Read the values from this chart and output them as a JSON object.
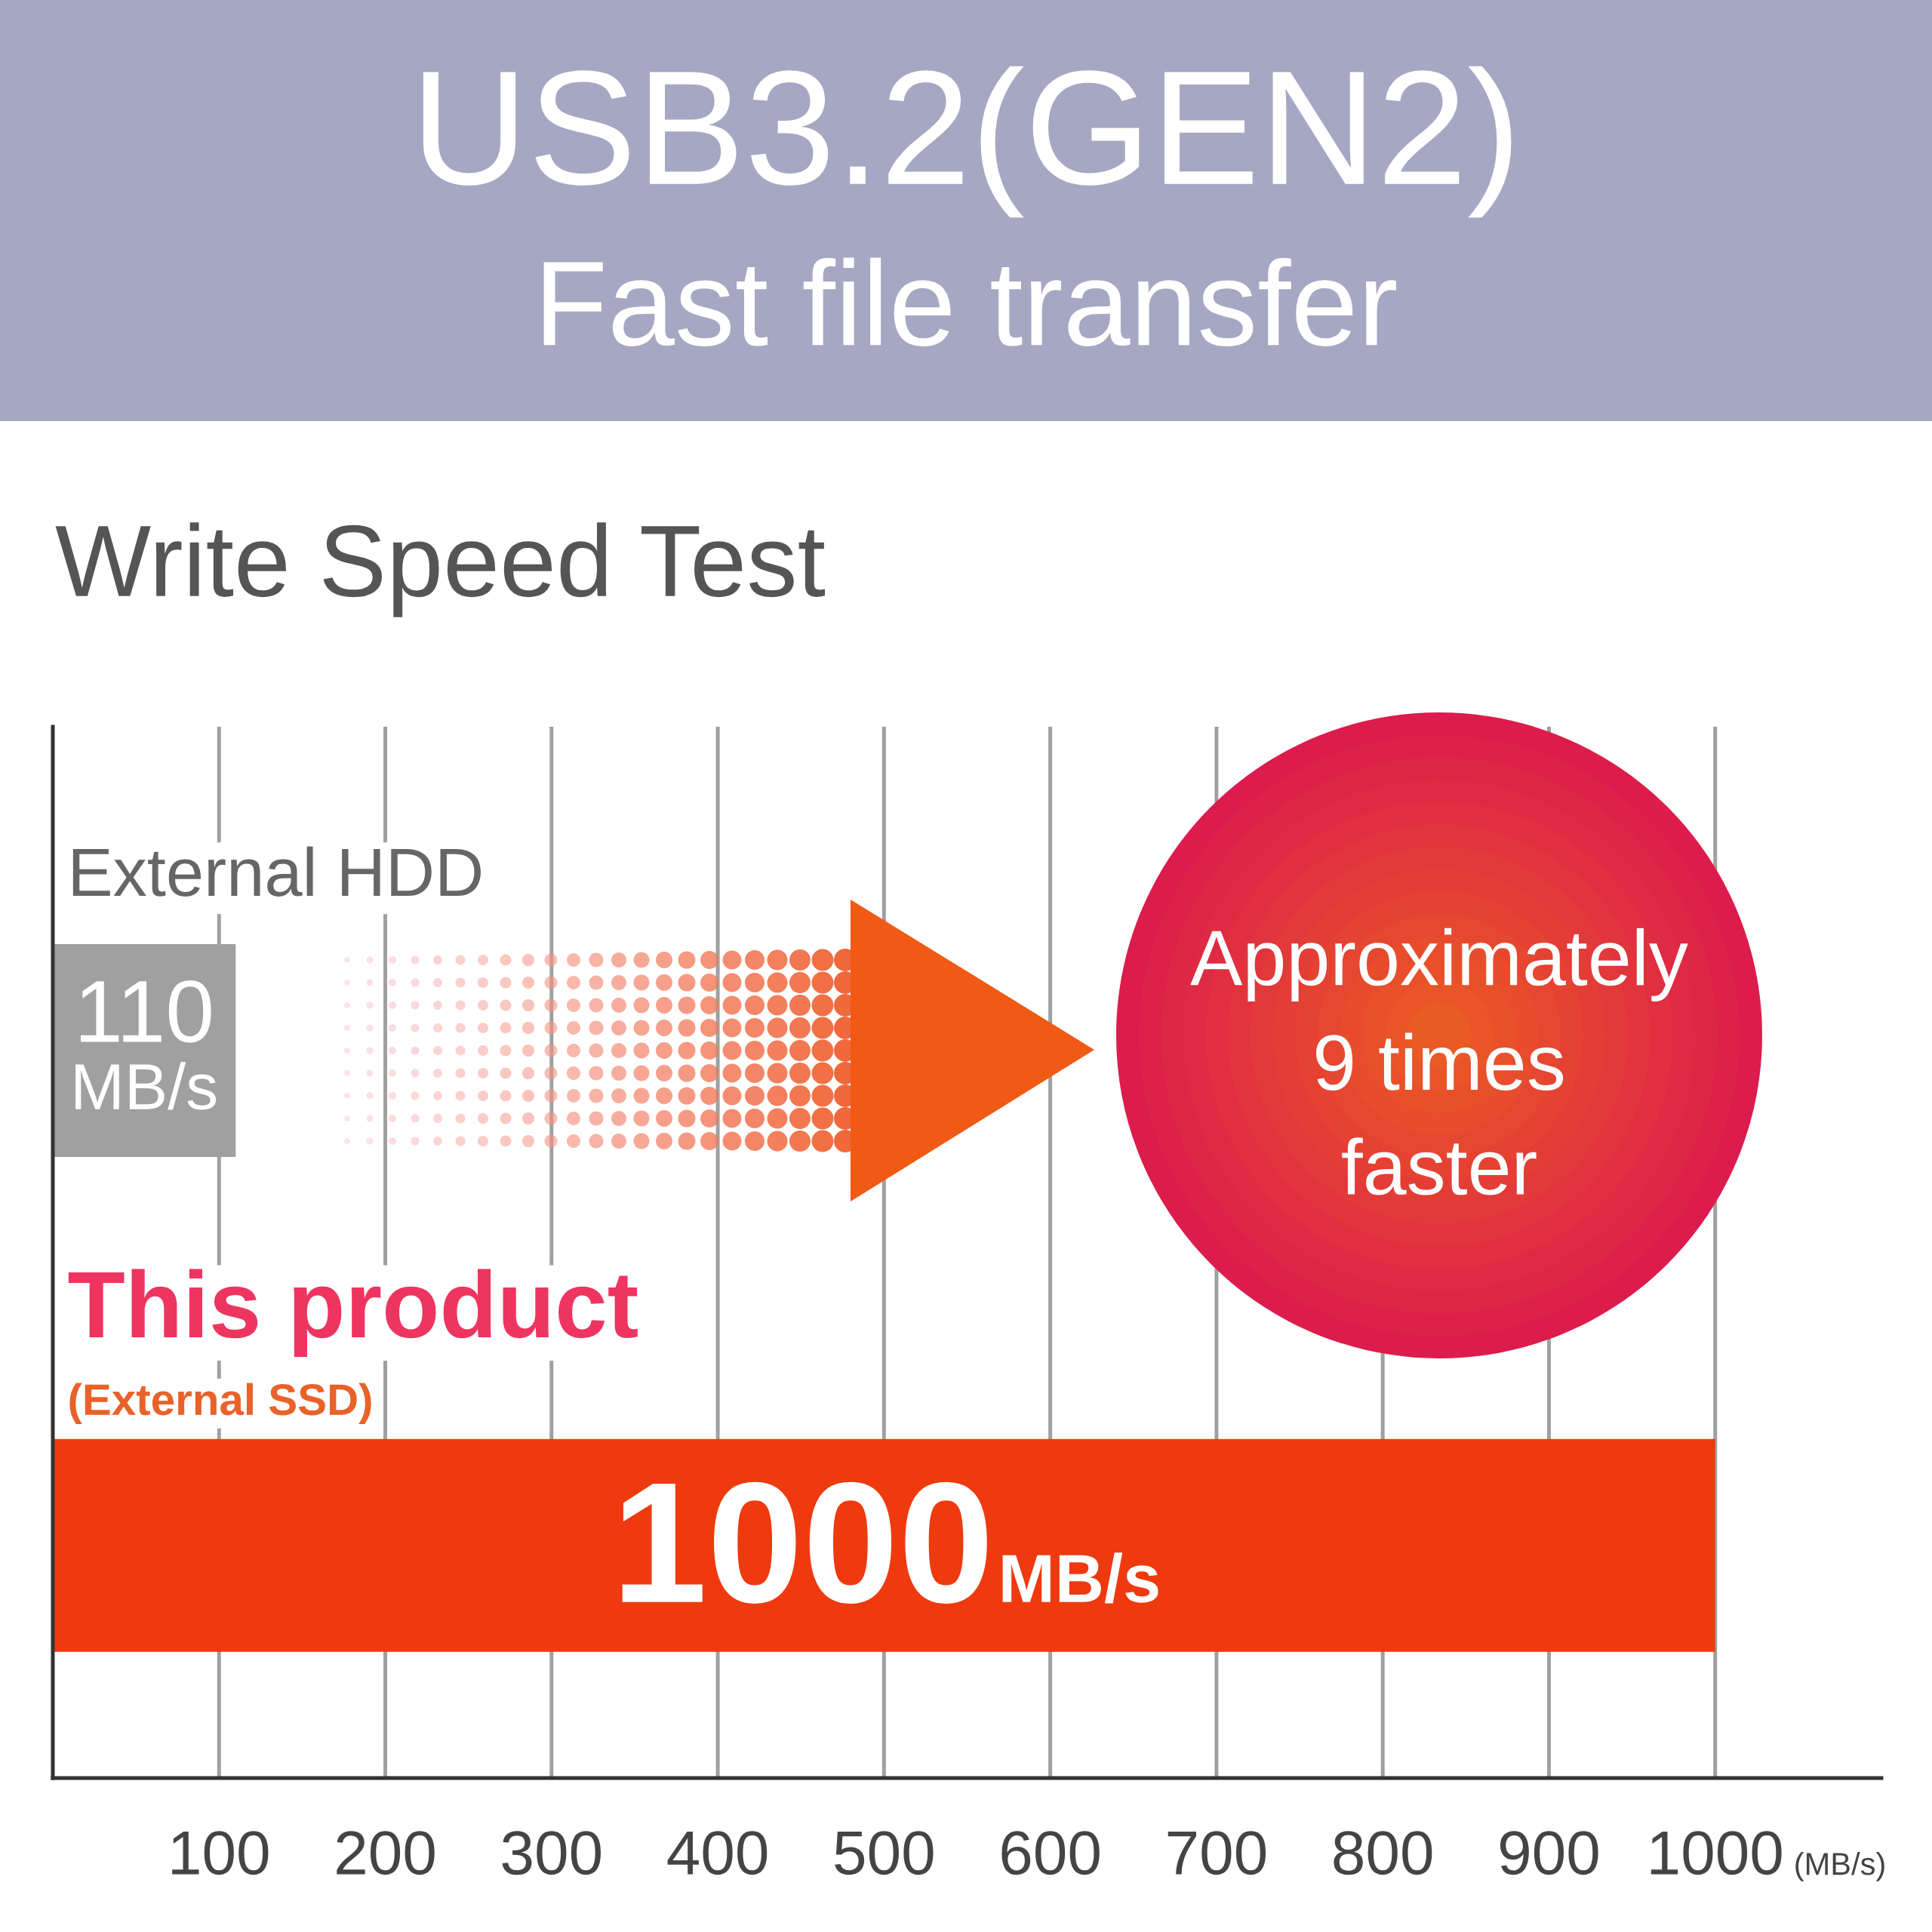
{
  "chart_data": {
    "type": "bar",
    "orientation": "horizontal",
    "title": "USB3.2(GEN2)",
    "subtitle": "Fast file transfer",
    "annotations": [
      "Write Speed Test",
      "Approximately\n9 times\nfaster"
    ],
    "categories": [
      "External HDD",
      "This product\n(External SSD)"
    ],
    "values": [
      110,
      1000
    ],
    "colors": [
      "#a0a0a0",
      "#ee3a0e"
    ],
    "value_labels": [
      "110\nMB/s",
      "1000MB/s"
    ],
    "xlabel": "(MB/s)",
    "xlim": [
      0,
      1100
    ],
    "xticks": [
      100,
      200,
      300,
      400,
      500,
      600,
      700,
      800,
      900,
      1000
    ],
    "grid": "x"
  }
}
